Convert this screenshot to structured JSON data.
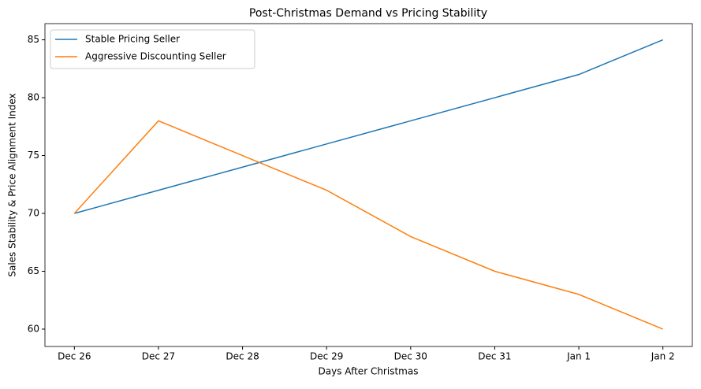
{
  "chart_data": {
    "type": "line",
    "title": "Post-Christmas Demand vs Pricing Stability",
    "x_label": "Days After Christmas",
    "y_label": "Sales Stability & Price Alignment Index",
    "categories": [
      "Dec 26",
      "Dec 27",
      "Dec 28",
      "Dec 29",
      "Dec 30",
      "Dec 31",
      "Jan 1",
      "Jan 2"
    ],
    "series": [
      {
        "name": "Stable Pricing Seller",
        "color": "#1f77b4",
        "values": [
          70,
          72,
          74,
          76,
          78,
          80,
          82,
          85
        ]
      },
      {
        "name": "Aggressive Discounting Seller",
        "color": "#ff7f0e",
        "values": [
          70,
          78,
          75,
          72,
          68,
          65,
          63,
          60
        ]
      }
    ],
    "ylim": [
      58.5,
      86.4
    ],
    "yticks": [
      60,
      65,
      70,
      75,
      80,
      85
    ],
    "grid": false,
    "legend": "upper-left"
  }
}
